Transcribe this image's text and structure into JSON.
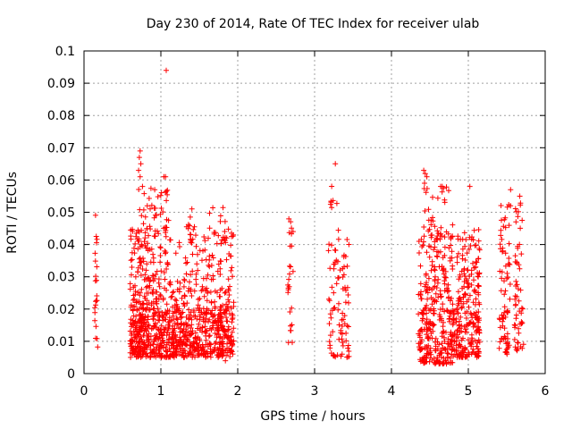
{
  "colors": {
    "series": "#ff0000",
    "axis": "#000000",
    "grid": "#a0a0a0"
  },
  "chart_data": {
    "type": "scatter",
    "title": "Day 230 of 2014, Rate Of TEC Index for receiver ulab",
    "xlabel": "GPS time / hours",
    "ylabel": "ROTI / TECUs",
    "xlim": [
      0,
      6
    ],
    "ylim": [
      0,
      0.1
    ],
    "xticks": [
      "0",
      "1",
      "2",
      "3",
      "4",
      "5",
      "6"
    ],
    "yticks": [
      "0",
      "0.01",
      "0.02",
      "0.03",
      "0.04",
      "0.05",
      "0.06",
      "0.07",
      "0.08",
      "0.09",
      "0.1"
    ],
    "grid": true,
    "marker": "plus",
    "clusters": [
      {
        "x": [
          0.6,
          0.8
        ],
        "y": [
          0.005,
          0.02
        ],
        "n": 160
      },
      {
        "x": [
          0.8,
          1.2
        ],
        "y": [
          0.005,
          0.02
        ],
        "n": 210
      },
      {
        "x": [
          1.2,
          1.6
        ],
        "y": [
          0.005,
          0.02
        ],
        "n": 200
      },
      {
        "x": [
          1.6,
          1.95
        ],
        "y": [
          0.005,
          0.02
        ],
        "n": 170
      },
      {
        "x": [
          0.6,
          0.95
        ],
        "y": [
          0.02,
          0.045
        ],
        "n": 130
      },
      {
        "x": [
          0.95,
          1.95
        ],
        "y": [
          0.02,
          0.045
        ],
        "n": 190
      },
      {
        "x": [
          0.7,
          1.1
        ],
        "y": [
          0.045,
          0.058
        ],
        "n": 35
      },
      {
        "x": [
          1.3,
          1.95
        ],
        "y": [
          0.04,
          0.052
        ],
        "n": 22
      },
      {
        "x": [
          0.14,
          0.18
        ],
        "y": [
          0.008,
          0.05
        ],
        "n": 22
      },
      {
        "x": [
          2.65,
          2.72
        ],
        "y": [
          0.009,
          0.05
        ],
        "n": 26
      },
      {
        "x": [
          3.18,
          3.45
        ],
        "y": [
          0.005,
          0.045
        ],
        "n": 85
      },
      {
        "x": [
          3.2,
          3.3
        ],
        "y": [
          0.045,
          0.06
        ],
        "n": 7
      },
      {
        "x": [
          4.35,
          4.8
        ],
        "y": [
          0.003,
          0.02
        ],
        "n": 190
      },
      {
        "x": [
          4.35,
          4.8
        ],
        "y": [
          0.02,
          0.045
        ],
        "n": 130
      },
      {
        "x": [
          4.4,
          4.8
        ],
        "y": [
          0.045,
          0.058
        ],
        "n": 22
      },
      {
        "x": [
          4.8,
          5.15
        ],
        "y": [
          0.005,
          0.02
        ],
        "n": 150
      },
      {
        "x": [
          4.85,
          5.15
        ],
        "y": [
          0.02,
          0.045
        ],
        "n": 100
      },
      {
        "x": [
          5.4,
          5.55
        ],
        "y": [
          0.006,
          0.053
        ],
        "n": 75
      },
      {
        "x": [
          5.6,
          5.72
        ],
        "y": [
          0.007,
          0.056
        ],
        "n": 55
      }
    ],
    "points": [
      {
        "x": 1.07,
        "y": 0.094
      },
      {
        "x": 0.73,
        "y": 0.069
      },
      {
        "x": 0.72,
        "y": 0.067
      },
      {
        "x": 0.74,
        "y": 0.065
      },
      {
        "x": 0.71,
        "y": 0.063
      },
      {
        "x": 0.73,
        "y": 0.061
      },
      {
        "x": 1.04,
        "y": 0.061
      },
      {
        "x": 1.06,
        "y": 0.061
      },
      {
        "x": 0.76,
        "y": 0.058
      },
      {
        "x": 0.92,
        "y": 0.057
      },
      {
        "x": 3.27,
        "y": 0.065
      },
      {
        "x": 4.42,
        "y": 0.063
      },
      {
        "x": 4.44,
        "y": 0.062
      },
      {
        "x": 4.46,
        "y": 0.061
      },
      {
        "x": 4.43,
        "y": 0.059
      },
      {
        "x": 4.64,
        "y": 0.058
      },
      {
        "x": 4.66,
        "y": 0.058
      },
      {
        "x": 5.02,
        "y": 0.058
      },
      {
        "x": 5.55,
        "y": 0.057
      },
      {
        "x": 5.67,
        "y": 0.055
      },
      {
        "x": 1.06,
        "y": 0.005
      },
      {
        "x": 1.84,
        "y": 0.004
      },
      {
        "x": 4.4,
        "y": 0.004
      }
    ]
  }
}
